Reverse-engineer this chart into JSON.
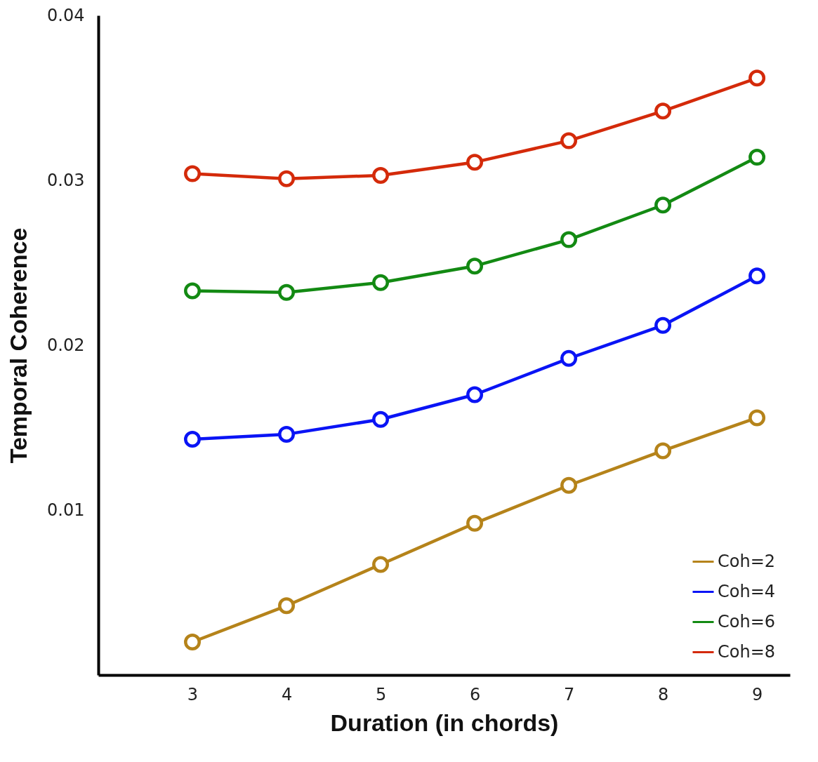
{
  "chart_data": {
    "type": "line",
    "xlabel": "Duration (in chords)",
    "ylabel": "Temporal Coherence",
    "x": [
      3,
      4,
      5,
      6,
      7,
      8,
      9
    ],
    "series": [
      {
        "name": "Coh=2",
        "color": "#b5831a",
        "values": [
          0.002,
          0.0042,
          0.0067,
          0.0092,
          0.0115,
          0.0136,
          0.0156
        ]
      },
      {
        "name": "Coh=4",
        "color": "#0a14f5",
        "values": [
          0.0143,
          0.0146,
          0.0155,
          0.017,
          0.0192,
          0.0212,
          0.0242
        ]
      },
      {
        "name": "Coh=6",
        "color": "#138a13",
        "values": [
          0.0233,
          0.0232,
          0.0238,
          0.0248,
          0.0264,
          0.0285,
          0.0314
        ]
      },
      {
        "name": "Coh=8",
        "color": "#d42a0a",
        "values": [
          0.0304,
          0.0301,
          0.0303,
          0.0311,
          0.0324,
          0.0342,
          0.0362
        ]
      }
    ],
    "xlim": [
      2,
      9.35
    ],
    "xticks": [
      3,
      4,
      5,
      6,
      7,
      8,
      9
    ],
    "ylim": [
      0,
      0.04
    ],
    "yticks": [
      0.01,
      0.02,
      0.03,
      0.04
    ],
    "grid": false,
    "legend": "bottom right",
    "marker": "circle",
    "line_style": "solid"
  }
}
